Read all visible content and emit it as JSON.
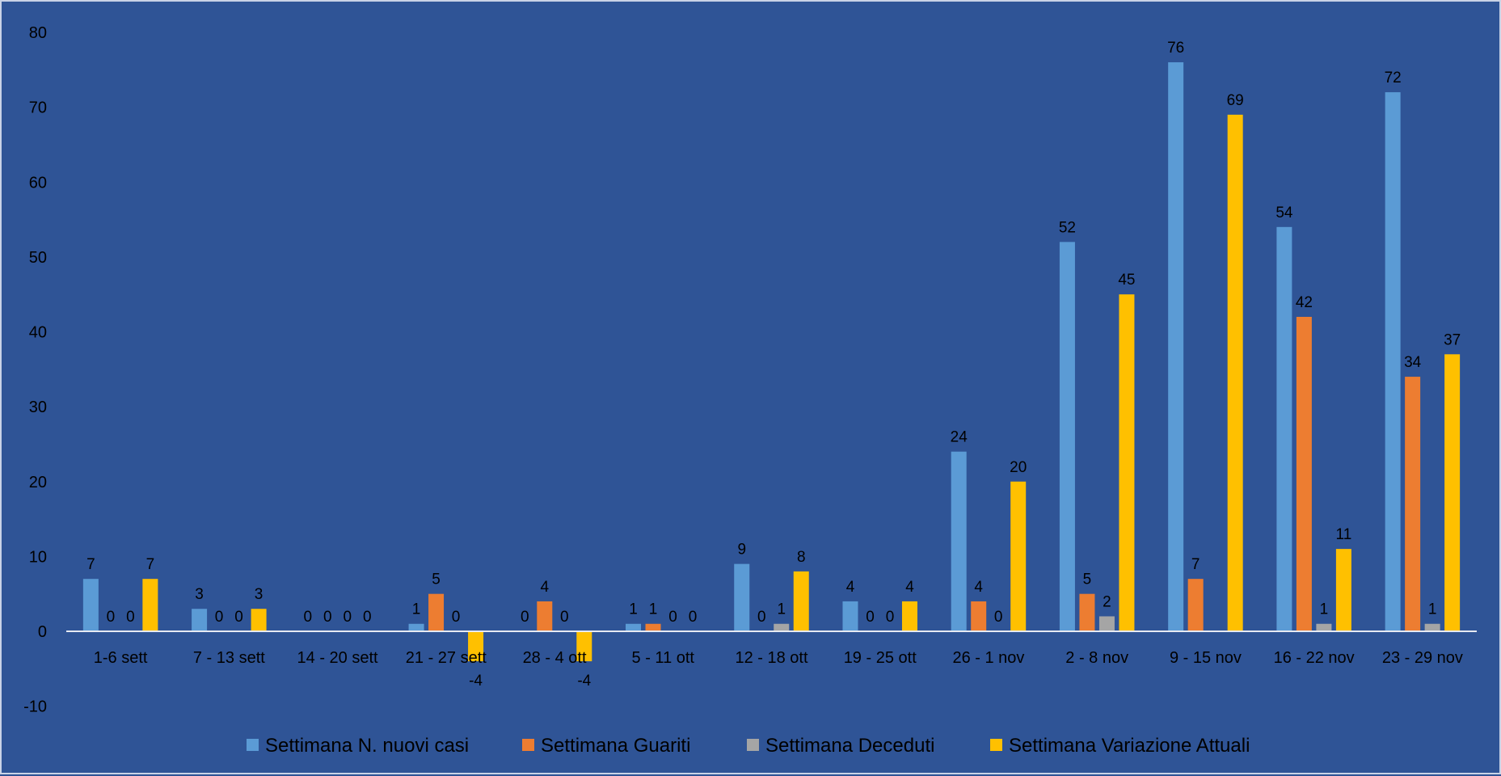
{
  "chart_data": {
    "type": "bar",
    "title": "",
    "xlabel": "",
    "ylabel": "",
    "ylim": [
      -10,
      80
    ],
    "y_ticks": [
      -10,
      0,
      10,
      20,
      30,
      40,
      50,
      60,
      70,
      80
    ],
    "grid": false,
    "legend_position": "bottom",
    "categories": [
      "1-6 sett",
      "7 - 13 sett",
      "14 - 20 sett",
      "21 - 27 sett",
      "28 - 4 ott",
      "5 - 11 ott",
      "12 - 18 ott",
      "19 - 25 ott",
      "26 - 1 nov",
      "2 - 8  nov",
      "9 - 15 nov",
      "16 - 22 nov",
      "23 - 29 nov"
    ],
    "series": [
      {
        "name": "Settimana N. nuovi casi",
        "color": "#5B9BD5",
        "values": [
          7,
          3,
          0,
          1,
          0,
          1,
          9,
          4,
          24,
          52,
          76,
          54,
          72
        ],
        "labels": [
          "7",
          "3",
          "0",
          "1",
          "0",
          "1",
          "9",
          "4",
          "24",
          "52",
          "76",
          "54",
          "72"
        ]
      },
      {
        "name": "Settimana Guariti",
        "color": "#ED7D31",
        "values": [
          0,
          0,
          0,
          5,
          4,
          1,
          0,
          0,
          4,
          5,
          7,
          42,
          34
        ],
        "labels": [
          "0",
          "0",
          "0",
          "5",
          "4",
          "1",
          "0",
          "0",
          "4",
          "5",
          "7",
          "42",
          "34"
        ]
      },
      {
        "name": "Settimana Deceduti",
        "color": "#A5A5A5",
        "values": [
          0,
          0,
          0,
          0,
          0,
          0,
          1,
          0,
          0,
          2,
          0,
          1,
          1
        ],
        "labels": [
          "0",
          "0",
          "0",
          "0",
          "0",
          "0",
          "1",
          "0",
          "0",
          "2",
          "",
          "1",
          "1"
        ]
      },
      {
        "name": "Settimana Variazione Attuali",
        "color": "#FFC000",
        "values": [
          7,
          3,
          0,
          -4,
          -4,
          0,
          8,
          4,
          20,
          45,
          69,
          11,
          37
        ],
        "labels": [
          "7",
          "3",
          "0",
          "-4",
          "-4",
          "0",
          "8",
          "4",
          "20",
          "45",
          "69",
          "11",
          "37"
        ]
      }
    ]
  }
}
